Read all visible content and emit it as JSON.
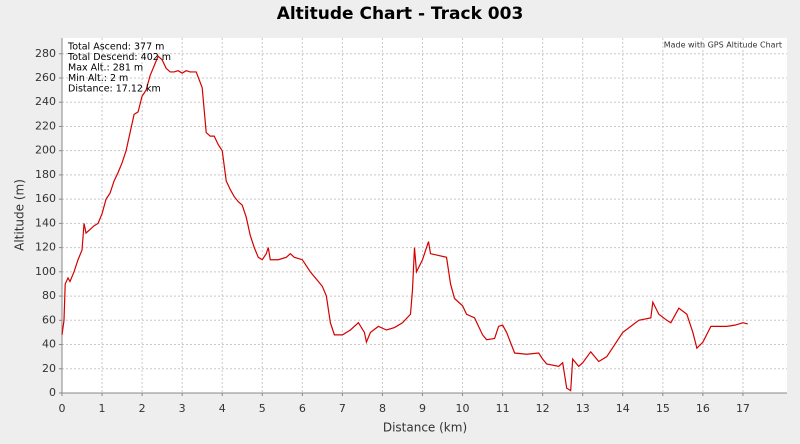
{
  "chart_data": {
    "type": "line",
    "title": "Altitude Chart - Track 003",
    "x_label": "Distance (km)",
    "y_label": "Altitude (m)",
    "annotations": [
      "Total Ascend: 377 m",
      "Total Descend: 402 m",
      "Max Alt.: 281 m",
      "Min Alt.: 2 m",
      "Distance: 17.12 km"
    ],
    "credit": "Made with GPS Altitude Chart",
    "xlim": [
      0,
      18.1
    ],
    "ylim": [
      0,
      293
    ],
    "xticks": [
      0,
      1,
      2,
      3,
      4,
      5,
      6,
      7,
      8,
      9,
      10,
      11,
      12,
      13,
      14,
      15,
      16,
      17
    ],
    "yticks": [
      0,
      20,
      40,
      60,
      80,
      100,
      120,
      140,
      160,
      180,
      200,
      220,
      240,
      260,
      280
    ],
    "grid": true,
    "x": [
      0,
      0.05,
      0.08,
      0.15,
      0.2,
      0.3,
      0.4,
      0.5,
      0.55,
      0.6,
      0.7,
      0.8,
      0.9,
      1.0,
      1.1,
      1.2,
      1.3,
      1.4,
      1.5,
      1.6,
      1.7,
      1.8,
      1.9,
      2.0,
      2.1,
      2.2,
      2.3,
      2.4,
      2.5,
      2.6,
      2.7,
      2.8,
      2.9,
      3.0,
      3.1,
      3.2,
      3.35,
      3.5,
      3.6,
      3.7,
      3.8,
      3.9,
      4.0,
      4.1,
      4.2,
      4.3,
      4.4,
      4.5,
      4.6,
      4.7,
      4.8,
      4.9,
      5.0,
      5.1,
      5.15,
      5.2,
      5.4,
      5.6,
      5.7,
      5.8,
      6.0,
      6.2,
      6.4,
      6.5,
      6.6,
      6.7,
      6.8,
      7.0,
      7.2,
      7.4,
      7.55,
      7.6,
      7.7,
      7.9,
      8.1,
      8.3,
      8.5,
      8.7,
      8.75,
      8.8,
      8.85,
      9.0,
      9.15,
      9.2,
      9.6,
      9.7,
      9.8,
      10.0,
      10.1,
      10.3,
      10.5,
      10.6,
      10.8,
      10.9,
      11.0,
      11.1,
      11.3,
      11.6,
      11.9,
      12.0,
      12.1,
      12.4,
      12.5,
      12.6,
      12.7,
      12.75,
      12.9,
      13.0,
      13.2,
      13.4,
      13.6,
      13.8,
      14.0,
      14.2,
      14.4,
      14.7,
      14.75,
      14.9,
      15.1,
      15.2,
      15.4,
      15.6,
      15.75,
      15.85,
      16.0,
      16.2,
      16.6,
      16.8,
      17.0,
      17.12
    ],
    "series": [
      {
        "name": "Altitude",
        "color": "#d40000",
        "values": [
          48,
          60,
          90,
          95,
          92,
          100,
          110,
          118,
          140,
          132,
          135,
          138,
          140,
          148,
          160,
          165,
          175,
          182,
          190,
          200,
          215,
          230,
          232,
          245,
          250,
          262,
          270,
          278,
          275,
          268,
          265,
          265,
          266,
          264,
          266,
          265,
          265,
          252,
          215,
          212,
          212,
          205,
          200,
          175,
          168,
          162,
          158,
          155,
          145,
          130,
          120,
          112,
          110,
          115,
          120,
          110,
          110,
          112,
          115,
          112,
          110,
          100,
          92,
          88,
          80,
          58,
          48,
          48,
          52,
          58,
          50,
          42,
          50,
          55,
          52,
          54,
          58,
          65,
          85,
          120,
          100,
          110,
          125,
          115,
          112,
          90,
          78,
          72,
          65,
          62,
          48,
          44,
          45,
          55,
          56,
          50,
          33,
          32,
          33,
          28,
          24,
          22,
          25,
          4,
          2,
          28,
          22,
          25,
          34,
          26,
          30,
          40,
          50,
          55,
          60,
          62,
          75,
          65,
          60,
          58,
          70,
          65,
          50,
          37,
          42,
          55,
          55,
          56,
          58,
          57
        ]
      }
    ]
  }
}
